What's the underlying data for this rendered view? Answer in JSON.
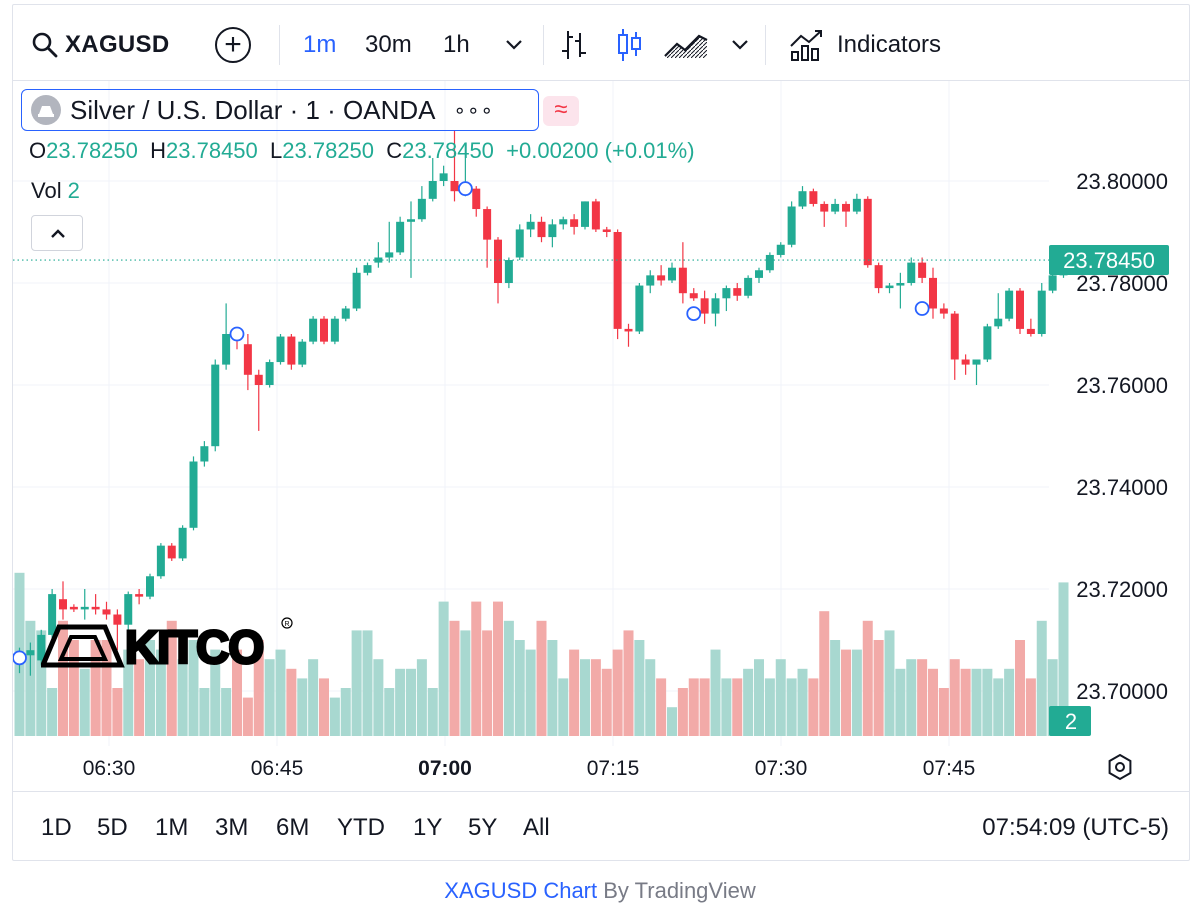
{
  "toolbar": {
    "symbol": "XAGUSD",
    "intervals": [
      "1m",
      "30m",
      "1h"
    ],
    "active_interval": "1m",
    "indicators_label": "Indicators"
  },
  "legend": {
    "title": "Silver / U.S. Dollar · 1 · OANDA",
    "more": "∘∘∘",
    "badge": "≈",
    "open_key": "O",
    "open": "23.78250",
    "high_key": "H",
    "high": "23.78450",
    "low_key": "L",
    "low": "23.78250",
    "close_key": "C",
    "close": "23.78450",
    "change": "+0.00200 (+0.01%)",
    "vol_key": "Vol",
    "vol": "2"
  },
  "price_axis": {
    "labels": [
      "23.80000",
      "23.78000",
      "23.76000",
      "23.74000",
      "23.72000",
      "23.70000"
    ],
    "last_price_label": "23.78450",
    "volume_label": "2"
  },
  "time_axis": {
    "labels": [
      "06:30",
      "06:45",
      "07:00",
      "07:15",
      "07:30",
      "07:45"
    ],
    "bold_label": "07:00"
  },
  "ranges": [
    "1D",
    "5D",
    "1M",
    "3M",
    "6M",
    "YTD",
    "1Y",
    "5Y",
    "All"
  ],
  "clock": "07:54:09 (UTC-5)",
  "attribution": {
    "symbol_chart": "XAGUSD Chart",
    "by": "By TradingView"
  },
  "colors": {
    "up": "#22ab94",
    "down": "#f23645",
    "accent": "#2962ff",
    "up_vol": "#a8d8d0",
    "down_vol": "#f2aaa8"
  },
  "chart_data": {
    "type": "candlestick",
    "title": "Silver / U.S. Dollar · 1 · OANDA",
    "interval": "1m",
    "y_range": [
      23.69,
      23.813
    ],
    "x_tick_labels": [
      "06:30",
      "06:45",
      "07:00",
      "07:15",
      "07:30",
      "07:45"
    ],
    "last_price": 23.7845,
    "ohlc_columns": [
      "open",
      "high",
      "low",
      "close"
    ],
    "candles": [
      [
        23.7055,
        23.7085,
        23.7035,
        23.7065
      ],
      [
        23.707,
        23.7095,
        23.703,
        23.708
      ],
      [
        23.706,
        23.712,
        23.705,
        23.711
      ],
      [
        23.711,
        23.72,
        23.71,
        23.719
      ],
      [
        23.718,
        23.7215,
        23.714,
        23.716
      ],
      [
        23.7165,
        23.717,
        23.7155,
        23.716
      ],
      [
        23.716,
        23.72,
        23.714,
        23.7165
      ],
      [
        23.7165,
        23.719,
        23.715,
        23.716
      ],
      [
        23.716,
        23.7175,
        23.714,
        23.715
      ],
      [
        23.715,
        23.716,
        23.708,
        23.713
      ],
      [
        23.713,
        23.7195,
        23.712,
        23.719
      ],
      [
        23.719,
        23.72,
        23.717,
        23.7185
      ],
      [
        23.7185,
        23.723,
        23.718,
        23.7225
      ],
      [
        23.7225,
        23.729,
        23.722,
        23.7285
      ],
      [
        23.7285,
        23.729,
        23.7255,
        23.726
      ],
      [
        23.726,
        23.7325,
        23.7255,
        23.732
      ],
      [
        23.732,
        23.746,
        23.7315,
        23.745
      ],
      [
        23.745,
        23.749,
        23.744,
        23.748
      ],
      [
        23.748,
        23.765,
        23.747,
        23.764
      ],
      [
        23.764,
        23.776,
        23.763,
        23.77
      ],
      [
        23.7705,
        23.771,
        23.767,
        23.7695
      ],
      [
        23.768,
        23.77,
        23.759,
        23.762
      ],
      [
        23.762,
        23.763,
        23.751,
        23.76
      ],
      [
        23.76,
        23.765,
        23.7595,
        23.7645
      ],
      [
        23.7645,
        23.77,
        23.764,
        23.7695
      ],
      [
        23.7695,
        23.77,
        23.763,
        23.764
      ],
      [
        23.764,
        23.769,
        23.7635,
        23.7685
      ],
      [
        23.7685,
        23.7735,
        23.768,
        23.773
      ],
      [
        23.773,
        23.7735,
        23.768,
        23.7685
      ],
      [
        23.7685,
        23.7735,
        23.768,
        23.773
      ],
      [
        23.773,
        23.7755,
        23.7725,
        23.775
      ],
      [
        23.775,
        23.783,
        23.7745,
        23.782
      ],
      [
        23.782,
        23.784,
        23.7815,
        23.7835
      ],
      [
        23.784,
        23.788,
        23.783,
        23.785
      ],
      [
        23.785,
        23.792,
        23.784,
        23.786
      ],
      [
        23.786,
        23.793,
        23.7855,
        23.792
      ],
      [
        23.792,
        23.796,
        23.781,
        23.7925
      ],
      [
        23.7925,
        23.799,
        23.792,
        23.7965
      ],
      [
        23.7965,
        23.8045,
        23.796,
        23.8
      ],
      [
        23.8,
        23.803,
        23.799,
        23.8015
      ],
      [
        23.8,
        23.81,
        23.796,
        23.798
      ],
      [
        23.798,
        23.807,
        23.797,
        23.7985
      ],
      [
        23.7985,
        23.799,
        23.793,
        23.7945
      ],
      [
        23.7945,
        23.795,
        23.783,
        23.7885
      ],
      [
        23.7885,
        23.789,
        23.776,
        23.78
      ],
      [
        23.78,
        23.785,
        23.779,
        23.7845
      ],
      [
        23.785,
        23.7915,
        23.7845,
        23.7905
      ],
      [
        23.7905,
        23.7935,
        23.789,
        23.792
      ],
      [
        23.792,
        23.793,
        23.788,
        23.789
      ],
      [
        23.789,
        23.7925,
        23.787,
        23.7915
      ],
      [
        23.7915,
        23.793,
        23.7905,
        23.7925
      ],
      [
        23.7925,
        23.7935,
        23.7895,
        23.791
      ],
      [
        23.791,
        23.796,
        23.7905,
        23.796
      ],
      [
        23.796,
        23.7965,
        23.79,
        23.7905
      ],
      [
        23.7905,
        23.791,
        23.789,
        23.79
      ],
      [
        23.79,
        23.7905,
        23.769,
        23.771
      ],
      [
        23.771,
        23.772,
        23.7675,
        23.7705
      ],
      [
        23.7705,
        23.78,
        23.77,
        23.7795
      ],
      [
        23.7795,
        23.7825,
        23.778,
        23.7815
      ],
      [
        23.7815,
        23.7835,
        23.7795,
        23.7805
      ],
      [
        23.7805,
        23.784,
        23.78,
        23.783
      ],
      [
        23.783,
        23.788,
        23.776,
        23.778
      ],
      [
        23.778,
        23.779,
        23.7765,
        23.777
      ],
      [
        23.777,
        23.7785,
        23.772,
        23.774
      ],
      [
        23.774,
        23.778,
        23.7715,
        23.777
      ],
      [
        23.777,
        23.7795,
        23.7745,
        23.779
      ],
      [
        23.779,
        23.78,
        23.7765,
        23.7775
      ],
      [
        23.7775,
        23.7815,
        23.777,
        23.781
      ],
      [
        23.781,
        23.783,
        23.78,
        23.7825
      ],
      [
        23.7825,
        23.786,
        23.782,
        23.7855
      ],
      [
        23.7855,
        23.788,
        23.785,
        23.7875
      ],
      [
        23.7875,
        23.796,
        23.787,
        23.795
      ],
      [
        23.795,
        23.799,
        23.7945,
        23.798
      ],
      [
        23.798,
        23.7985,
        23.795,
        23.7955
      ],
      [
        23.7955,
        23.796,
        23.791,
        23.794
      ],
      [
        23.794,
        23.7965,
        23.7935,
        23.7955
      ],
      [
        23.7955,
        23.796,
        23.791,
        23.794
      ],
      [
        23.794,
        23.7975,
        23.7935,
        23.7965
      ],
      [
        23.7965,
        23.797,
        23.783,
        23.7835
      ],
      [
        23.7835,
        23.784,
        23.778,
        23.779
      ],
      [
        23.779,
        23.78,
        23.778,
        23.7795
      ],
      [
        23.7795,
        23.782,
        23.775,
        23.78
      ],
      [
        23.78,
        23.785,
        23.7795,
        23.784
      ],
      [
        23.784,
        23.785,
        23.78,
        23.781
      ],
      [
        23.781,
        23.783,
        23.773,
        23.775
      ],
      [
        23.775,
        23.776,
        23.773,
        23.774
      ],
      [
        23.774,
        23.7745,
        23.761,
        23.765
      ],
      [
        23.765,
        23.766,
        23.762,
        23.764
      ],
      [
        23.764,
        23.765,
        23.76,
        23.765
      ],
      [
        23.765,
        23.772,
        23.7645,
        23.7715
      ],
      [
        23.7715,
        23.778,
        23.771,
        23.773
      ],
      [
        23.773,
        23.779,
        23.7725,
        23.7785
      ],
      [
        23.7785,
        23.779,
        23.77,
        23.771
      ],
      [
        23.771,
        23.773,
        23.7695,
        23.77
      ],
      [
        23.77,
        23.78,
        23.7695,
        23.7785
      ],
      [
        23.7785,
        23.785,
        23.778,
        23.7815
      ],
      [
        23.7815,
        23.785,
        23.781,
        23.7845
      ]
    ],
    "volume": [
      17,
      12,
      11,
      5,
      12,
      10,
      7,
      10,
      10,
      5,
      9,
      8,
      10,
      9,
      12,
      8,
      10,
      5,
      9,
      5,
      9,
      4,
      10,
      8,
      9,
      7,
      6,
      8,
      6,
      4,
      5,
      11,
      11,
      8,
      5,
      7,
      7,
      8,
      5,
      14,
      12,
      11,
      14,
      11,
      14,
      12,
      10,
      9,
      12,
      10,
      6,
      9,
      8,
      8,
      7,
      9,
      11,
      10,
      8,
      6,
      3,
      5,
      6,
      6,
      9,
      6,
      6,
      7,
      8,
      6,
      8,
      6,
      7,
      6,
      13,
      10,
      9,
      9,
      12,
      10,
      11,
      7,
      8,
      8,
      7,
      5,
      8,
      7,
      7,
      7,
      6,
      7,
      10,
      6,
      12,
      8,
      16
    ]
  }
}
